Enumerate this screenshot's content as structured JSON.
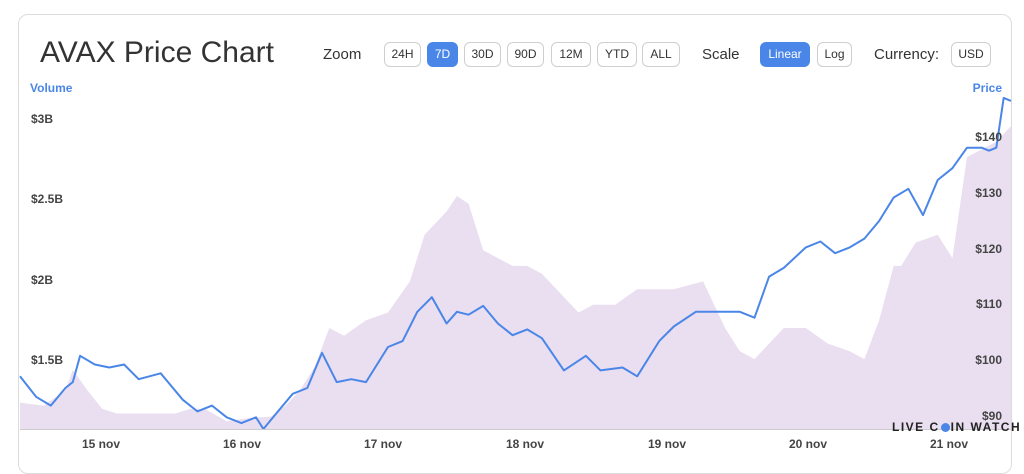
{
  "header": {
    "title": "AVAX Price Chart",
    "zoom_label": "Zoom",
    "zoom_options": [
      "24H",
      "7D",
      "30D",
      "90D",
      "12M",
      "YTD",
      "ALL"
    ],
    "zoom_selected": "7D",
    "scale_label": "Scale",
    "scale_options": [
      "Linear",
      "Log"
    ],
    "scale_selected": "Linear",
    "currency_label": "Currency:",
    "currency_value": "USD"
  },
  "watermark": {
    "pre": "LIVE C",
    "post": "IN WATCH"
  },
  "colors": {
    "price_line": "#4a86e8",
    "volume_fill": "#eadff0",
    "accent": "#4a86e8"
  },
  "chart_data": {
    "type": "line",
    "volume_axis_title": "Volume",
    "price_axis_title": "Price",
    "volume_ticks": [
      "$1.5B",
      "$2B",
      "$2.5B",
      "$3B"
    ],
    "price_ticks": [
      "$90",
      "$100",
      "$110",
      "$120",
      "$130",
      "$140"
    ],
    "x_ticks": [
      "15 nov",
      "16 nov",
      "17 nov",
      "18 nov",
      "19 nov",
      "20 nov",
      "21 nov"
    ],
    "x_range_days": [
      14.64,
      21.4
    ],
    "volume_ylim_billions": [
      1.05,
      3.2
    ],
    "price_ylim": [
      89,
      146
    ],
    "series": [
      {
        "axis": "right",
        "x": [
          14.64,
          14.75,
          14.85,
          14.95,
          15.0,
          15.05,
          15.15,
          15.25,
          15.35,
          15.45,
          15.6,
          15.75,
          15.85,
          15.95,
          16.05,
          16.15,
          16.25,
          16.3,
          16.4,
          16.5,
          16.6,
          16.7,
          16.8,
          16.9,
          17.0,
          17.15,
          17.25,
          17.35,
          17.45,
          17.55,
          17.62,
          17.7,
          17.8,
          17.9,
          18.0,
          18.1,
          18.2,
          18.35,
          18.5,
          18.6,
          18.75,
          18.85,
          19.0,
          19.1,
          19.25,
          19.4,
          19.55,
          19.65,
          19.75,
          19.85,
          20.0,
          20.1,
          20.2,
          20.3,
          20.4,
          20.5,
          20.6,
          20.7,
          20.8,
          20.9,
          21.0,
          21.1,
          21.2,
          21.25,
          21.3,
          21.35,
          21.4
        ],
        "values": [
          98,
          94.5,
          93,
          96,
          97,
          101.5,
          100,
          99.5,
          100,
          97.5,
          98.5,
          94,
          92,
          93,
          91,
          90,
          91,
          89,
          92,
          95,
          96,
          102,
          97,
          97.5,
          97,
          103,
          104,
          109,
          111.5,
          107,
          109,
          108.5,
          110,
          107,
          105,
          106,
          104.5,
          99,
          101.5,
          99,
          99.5,
          98,
          104,
          106.5,
          109,
          109,
          109,
          108,
          115,
          116.5,
          120,
          121,
          119,
          120,
          121.5,
          124.5,
          128.5,
          130,
          125.5,
          131.5,
          133.5,
          137,
          137,
          136.5,
          137,
          145.5,
          145
        ]
      },
      {
        "axis": "left",
        "x": [
          14.64,
          14.8,
          14.95,
          15.0,
          15.1,
          15.2,
          15.3,
          15.5,
          15.7,
          15.8,
          15.9,
          16.05,
          16.2,
          16.35,
          16.45,
          16.55,
          16.65,
          16.75,
          16.85,
          17.0,
          17.15,
          17.3,
          17.4,
          17.55,
          17.62,
          17.7,
          17.8,
          17.9,
          18.0,
          18.1,
          18.2,
          18.3,
          18.45,
          18.55,
          18.7,
          18.85,
          19.0,
          19.1,
          19.3,
          19.45,
          19.55,
          19.65,
          19.75,
          19.85,
          20.0,
          20.15,
          20.3,
          20.4,
          20.5,
          20.6,
          20.65,
          20.75,
          20.9,
          21.0,
          21.1,
          21.2,
          21.3,
          21.4
        ],
        "values": [
          1.22,
          1.2,
          1.3,
          1.43,
          1.3,
          1.18,
          1.15,
          1.15,
          1.15,
          1.18,
          1.18,
          1.1,
          1.12,
          1.13,
          1.2,
          1.3,
          1.45,
          1.7,
          1.65,
          1.75,
          1.8,
          2.0,
          2.3,
          2.45,
          2.55,
          2.5,
          2.2,
          2.15,
          2.1,
          2.1,
          2.05,
          1.95,
          1.8,
          1.85,
          1.85,
          1.95,
          1.95,
          1.95,
          2.0,
          1.7,
          1.55,
          1.5,
          1.6,
          1.7,
          1.7,
          1.6,
          1.55,
          1.5,
          1.75,
          2.1,
          2.1,
          2.25,
          2.3,
          2.15,
          2.8,
          2.85,
          2.9,
          3.0
        ]
      }
    ]
  }
}
